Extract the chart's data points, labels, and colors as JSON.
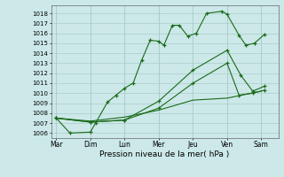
{
  "title": "",
  "xlabel": "Pression niveau de la mer( hPa )",
  "background_color": "#cce8e8",
  "grid_color": "#aacccc",
  "line_color": "#1a6b1a",
  "ylim": [
    1005.5,
    1018.8
  ],
  "yticks": [
    1006,
    1007,
    1008,
    1009,
    1010,
    1011,
    1012,
    1013,
    1014,
    1015,
    1016,
    1017,
    1018
  ],
  "xlim": [
    -0.15,
    6.5
  ],
  "x_labels": [
    "Mar",
    "Dim",
    "Lun",
    "Mer",
    "Jeu",
    "Ven",
    "Sam"
  ],
  "x_positions": [
    0,
    1,
    2,
    3,
    4,
    5,
    6
  ],
  "series": [
    {
      "x": [
        0.0,
        0.4,
        1.0,
        1.15,
        1.5,
        1.75,
        2.0,
        2.25,
        2.5,
        2.75,
        3.0,
        3.15,
        3.4,
        3.6,
        3.85,
        4.1,
        4.4,
        4.85,
        5.0,
        5.35,
        5.55,
        5.8,
        6.1
      ],
      "y": [
        1007.5,
        1006.0,
        1006.1,
        1007.0,
        1009.1,
        1009.8,
        1010.5,
        1011.0,
        1013.3,
        1015.3,
        1015.2,
        1014.8,
        1016.8,
        1016.8,
        1015.7,
        1016.0,
        1018.0,
        1018.2,
        1017.9,
        1015.8,
        1014.8,
        1015.0,
        1015.9
      ],
      "marker": "+"
    },
    {
      "x": [
        0.0,
        1.0,
        2.0,
        3.0,
        4.0,
        5.0,
        5.4,
        5.75,
        6.1
      ],
      "y": [
        1007.5,
        1007.1,
        1007.3,
        1009.2,
        1012.3,
        1014.3,
        1011.8,
        1010.2,
        1010.7
      ],
      "marker": "+"
    },
    {
      "x": [
        0.0,
        1.0,
        2.0,
        3.0,
        4.0,
        5.0,
        5.35,
        5.75,
        6.1
      ],
      "y": [
        1007.5,
        1007.1,
        1007.3,
        1008.5,
        1011.0,
        1013.0,
        1009.8,
        1010.0,
        1010.3
      ],
      "marker": "+"
    },
    {
      "x": [
        0.0,
        1.0,
        2.0,
        3.0,
        4.0,
        5.0,
        6.0
      ],
      "y": [
        1007.5,
        1007.2,
        1007.6,
        1008.3,
        1009.3,
        1009.5,
        1010.2
      ],
      "marker": null
    }
  ]
}
